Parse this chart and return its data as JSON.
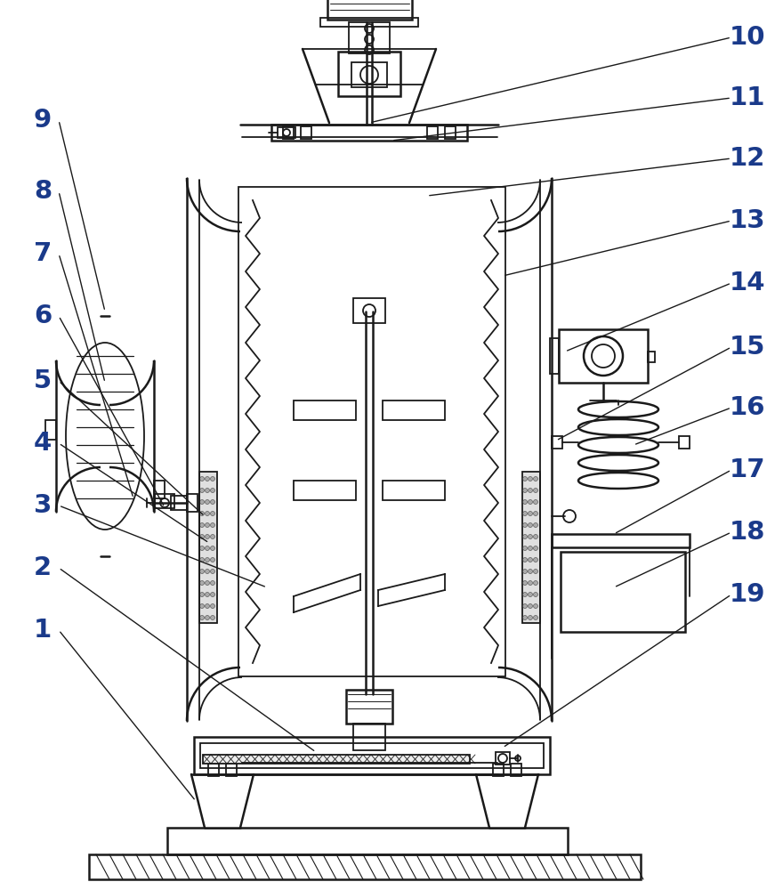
{
  "bg_color": "#ffffff",
  "line_color": "#1a1a1a",
  "label_color": "#1a3a8a",
  "fig_width": 8.8,
  "fig_height": 10.0,
  "dpi": 100
}
